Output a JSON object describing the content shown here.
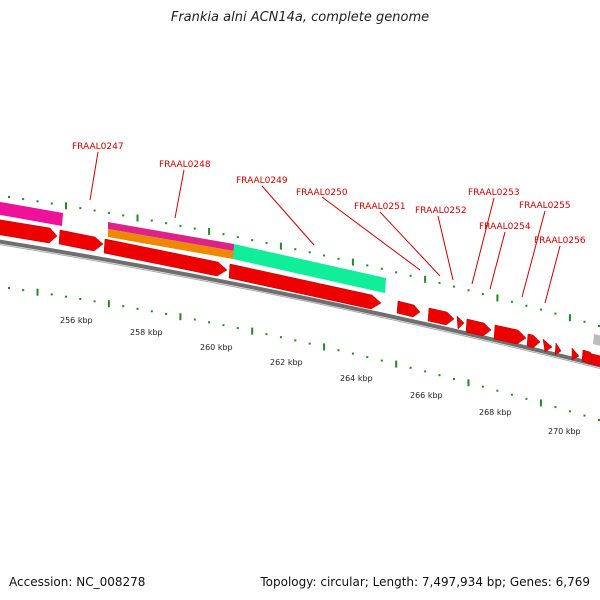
{
  "title": "Frankia alni ACN14a, complete genome",
  "footer": {
    "accession": "Accession: NC_008278",
    "summary": "Topology: circular; Length: 7,497,934 bp; Genes: 6,769"
  },
  "colors": {
    "gene_label": "#cc0000",
    "cds": "#ee0000",
    "backbone": "#777777",
    "tick": "#228822"
  },
  "scale_labels": [
    "256 kbp",
    "258 kbp",
    "260 kbp",
    "262 kbp",
    "264 kbp",
    "266 kbp",
    "268 kbp",
    "270 kbp"
  ],
  "gene_labels": [
    "FRAAL0247",
    "FRAAL0248",
    "FRAAL0249",
    "FRAAL0250",
    "FRAAL0251",
    "FRAAL0252",
    "FRAAL0253",
    "FRAAL0254",
    "FRAAL0255",
    "FRAAL0256"
  ],
  "feature_colors": {
    "magenta": "#ee1199",
    "pink": "#dd2288",
    "orange": "#ee8800",
    "teal": "#11ee99",
    "grey": "#bbbbbb"
  }
}
